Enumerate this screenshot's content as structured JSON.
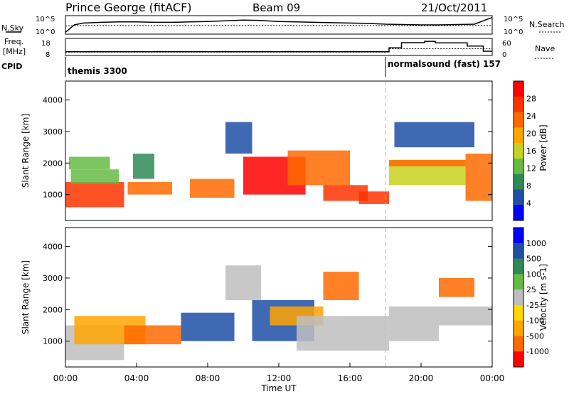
{
  "header": {
    "station": "Prince George (fitACF)",
    "beam": "Beam 09",
    "date": "21/Oct/2011"
  },
  "left_labels": {
    "nsky": "N.Sky",
    "freq_line1": "Freq.",
    "freq_line2": "[MHz]",
    "cpid": "CPID"
  },
  "right_labels": {
    "nsearch": "N.Search",
    "nave": "Nave"
  },
  "ticks": {
    "sky_top": "10^5",
    "sky_bottom": "10^0",
    "freq_top": "18",
    "freq_bottom": "8",
    "nave_top": "60",
    "nave_bottom": "0"
  },
  "cpid_segments": [
    {
      "label": "themis 3300",
      "start_hour": 0
    },
    {
      "label": "normalsound (fast) 157",
      "start_hour": 18.2
    }
  ],
  "colors": {
    "power_scale": [
      "#0000ff",
      "#1f4fa6",
      "#2e8b57",
      "#66bb44",
      "#c8d21e",
      "#ffa500",
      "#ff6a00",
      "#ff3300",
      "#ff0000"
    ],
    "velocity_scale": [
      "#0000ff",
      "#1f4fa6",
      "#2e8b57",
      "#66bb44",
      "#bebebe",
      "#ffd700",
      "#ffa500",
      "#ff6a00",
      "#ff0000"
    ],
    "ground_scatter": "#bebebe",
    "axis": "#000000"
  },
  "chart_data": [
    {
      "type": "line",
      "name": "sky-noise",
      "xlabel": "",
      "ylabel": "N.Sky",
      "x_hours": [
        0,
        0.5,
        1,
        2,
        3,
        4,
        5,
        6,
        7,
        8,
        9,
        10,
        11,
        12,
        13,
        14,
        15,
        16,
        17,
        18,
        19,
        20,
        21,
        22,
        23,
        24
      ],
      "noise_log10": [
        0.5,
        2.5,
        3.0,
        3.2,
        3.3,
        3.3,
        3.2,
        3.2,
        3.3,
        3.4,
        3.6,
        3.8,
        3.7,
        3.4,
        3.3,
        3.2,
        3.1,
        3.0,
        2.9,
        2.7,
        2.6,
        2.5,
        2.5,
        2.6,
        2.7,
        4.5
      ],
      "search_log10": [
        2.2,
        2.3,
        2.3,
        2.3,
        2.3,
        2.3,
        2.3,
        2.3,
        2.3,
        2.3,
        2.3,
        2.3,
        2.3,
        2.3,
        2.3,
        2.3,
        2.3,
        2.3,
        2.3,
        2.3,
        2.3,
        2.3,
        2.3,
        2.3,
        2.3,
        2.3
      ],
      "ylim": [
        0,
        5
      ]
    },
    {
      "type": "line",
      "name": "frequency",
      "x_hours": [
        0,
        18.2,
        18.2,
        18.9,
        18.9,
        20.2,
        20.2,
        20.8,
        20.8,
        22.6,
        22.6,
        23.5,
        23.5,
        24
      ],
      "freq_mhz": [
        10.2,
        10.2,
        12.5,
        12.5,
        15.5,
        15.5,
        16.3,
        16.3,
        15.4,
        15.4,
        13.5,
        13.5,
        10.5,
        10.5
      ],
      "nave_x_hours": [
        0,
        18.2,
        18.2,
        24
      ],
      "nave": [
        12,
        12,
        24,
        24
      ],
      "ylim": [
        8,
        18
      ]
    },
    {
      "type": "heatmap",
      "name": "power",
      "xlabel": "",
      "ylabel": "Slant Range [km]",
      "xlim": [
        0,
        24
      ],
      "ylim": [
        180,
        4600
      ],
      "yticks": [
        1000,
        2000,
        3000,
        4000
      ],
      "colorbar_label": "Power [dB]",
      "colorbar_ticks": [
        "28",
        "24",
        "20",
        "16",
        "12",
        "8",
        "4"
      ],
      "colorbar_range": [
        0,
        30
      ],
      "regions": [
        {
          "t0": 0,
          "t1": 3.3,
          "r0": 600,
          "r1": 1400,
          "value": 25
        },
        {
          "t0": 0.3,
          "t1": 3,
          "r0": 1350,
          "r1": 1800,
          "value": 12
        },
        {
          "t0": 0.2,
          "t1": 2.5,
          "r0": 1800,
          "r1": 2200,
          "value": 10
        },
        {
          "t0": 3.5,
          "t1": 6,
          "r0": 1000,
          "r1": 1400,
          "value": 22
        },
        {
          "t0": 3.8,
          "t1": 5,
          "r0": 1500,
          "r1": 2300,
          "value": 8
        },
        {
          "t0": 7,
          "t1": 9.5,
          "r0": 900,
          "r1": 1500,
          "value": 20
        },
        {
          "t0": 9,
          "t1": 10.5,
          "r0": 2300,
          "r1": 3300,
          "value": 6
        },
        {
          "t0": 10,
          "t1": 13.5,
          "r0": 1000,
          "r1": 2200,
          "value": 28
        },
        {
          "t0": 12.5,
          "t1": 16,
          "r0": 1300,
          "r1": 2400,
          "value": 20
        },
        {
          "t0": 14.5,
          "t1": 17,
          "r0": 800,
          "r1": 1300,
          "value": 25
        },
        {
          "t0": 16.5,
          "t1": 18.2,
          "r0": 700,
          "r1": 1100,
          "value": 26
        },
        {
          "t0": 18.2,
          "t1": 22.5,
          "r0": 1300,
          "r1": 2100,
          "value": 14
        },
        {
          "t0": 18.2,
          "t1": 22.5,
          "r0": 1900,
          "r1": 2100,
          "value": 22
        },
        {
          "t0": 22.5,
          "t1": 24,
          "r0": 800,
          "r1": 2300,
          "value": 22
        },
        {
          "t0": 18.5,
          "t1": 23,
          "r0": 2500,
          "r1": 3300,
          "value": 6
        }
      ]
    },
    {
      "type": "heatmap",
      "name": "velocity",
      "xlabel": "Time UT",
      "ylabel": "Slant Range [km]",
      "xlim": [
        0,
        24
      ],
      "ylim": [
        180,
        4600
      ],
      "yticks": [
        1000,
        2000,
        3000,
        4000
      ],
      "xticks": [
        "00:00",
        "04:00",
        "08:00",
        "12:00",
        "16:00",
        "20:00",
        "00:00"
      ],
      "colorbar_label": "Velocity [m s-1]",
      "colorbar_ticks": [
        "1000",
        "500",
        "100",
        "25",
        "-25",
        "-100",
        "-500",
        "-1000"
      ],
      "regions": [
        {
          "t0": 0,
          "t1": 3.3,
          "r0": 400,
          "r1": 1500,
          "value": 0
        },
        {
          "t0": 0.5,
          "t1": 4.5,
          "r0": 900,
          "r1": 1800,
          "value": -150
        },
        {
          "t0": 3.3,
          "t1": 6.5,
          "r0": 900,
          "r1": 1500,
          "value": -300
        },
        {
          "t0": 6.5,
          "t1": 9.5,
          "r0": 1000,
          "r1": 1900,
          "value": 200
        },
        {
          "t0": 9,
          "t1": 11,
          "r0": 2300,
          "r1": 3400,
          "value": 0
        },
        {
          "t0": 10.5,
          "t1": 14,
          "r0": 1000,
          "r1": 2300,
          "value": 150
        },
        {
          "t0": 11.5,
          "t1": 14.5,
          "r0": 1500,
          "r1": 2100,
          "value": -200
        },
        {
          "t0": 13,
          "t1": 18.2,
          "r0": 700,
          "r1": 1800,
          "value": 0
        },
        {
          "t0": 14.5,
          "t1": 16.5,
          "r0": 2300,
          "r1": 3200,
          "value": -300
        },
        {
          "t0": 18.2,
          "t1": 24,
          "r0": 1500,
          "r1": 2100,
          "value": 0
        },
        {
          "t0": 18.2,
          "t1": 21,
          "r0": 1000,
          "r1": 1500,
          "value": 0
        },
        {
          "t0": 21,
          "t1": 23,
          "r0": 2400,
          "r1": 3000,
          "value": -300
        }
      ]
    }
  ]
}
